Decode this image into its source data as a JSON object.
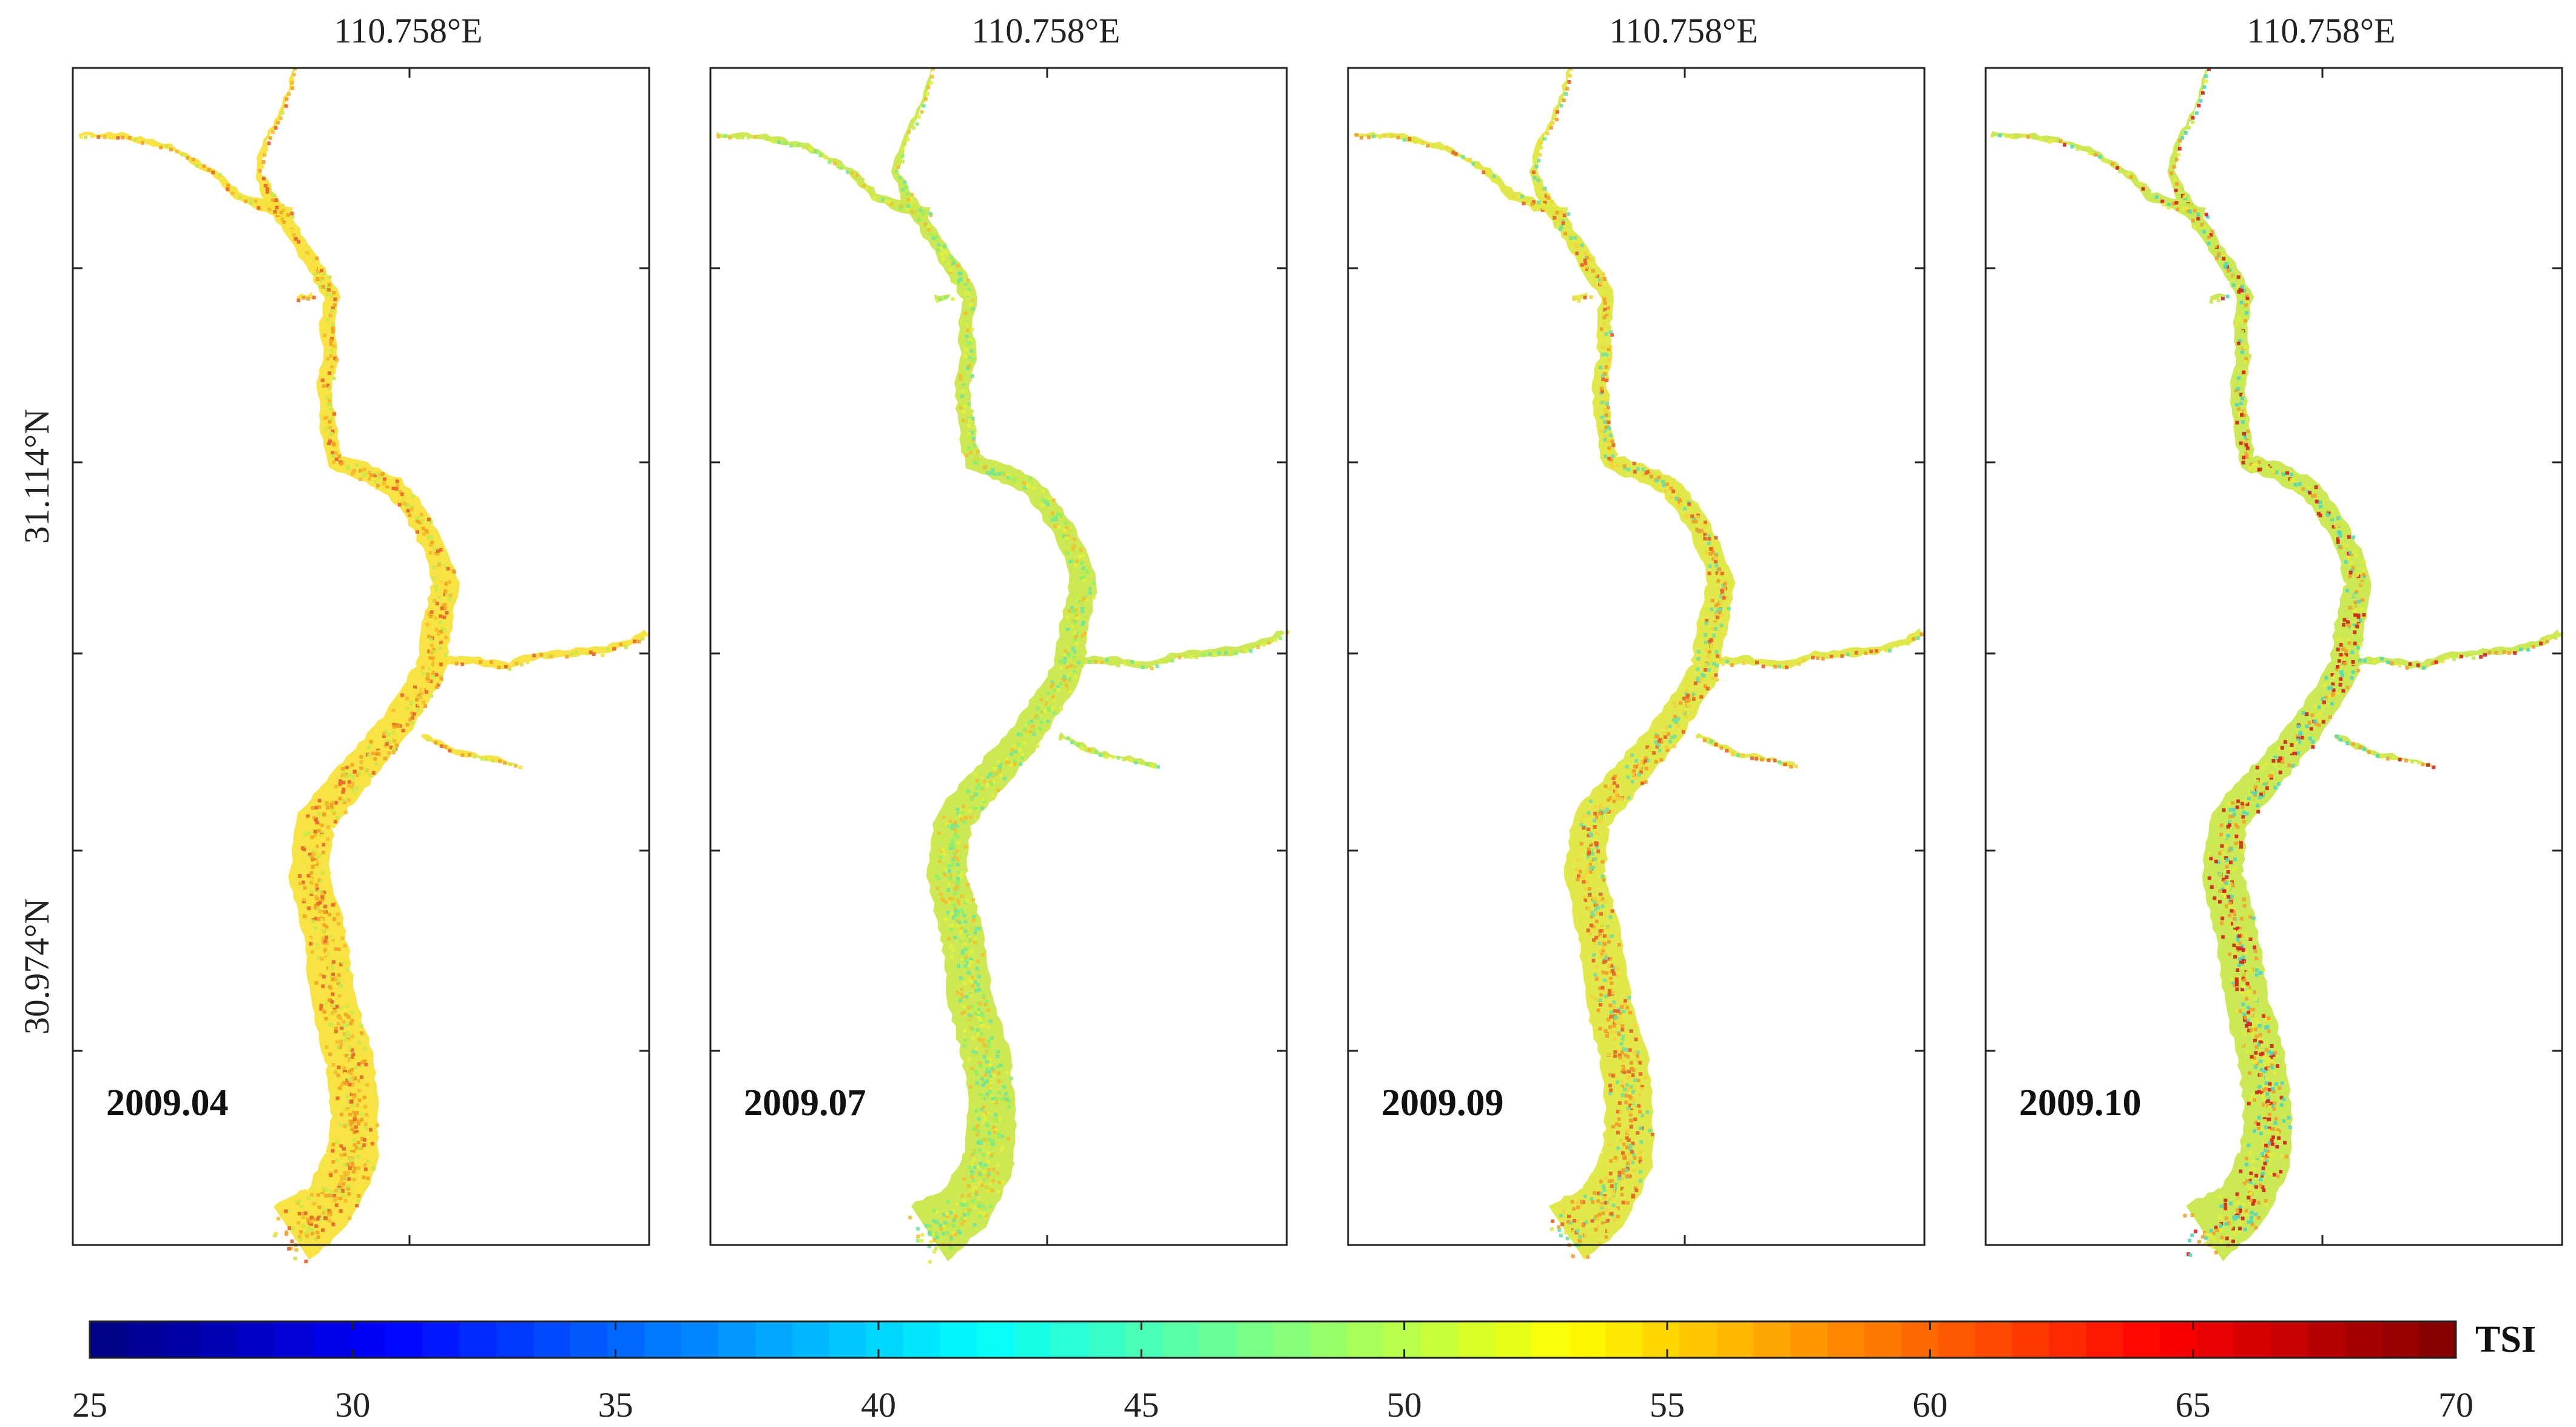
{
  "figure": {
    "panels": [
      {
        "date_label": "2009.04",
        "lon_label": "110.758°E",
        "palette": "p04"
      },
      {
        "date_label": "2009.07",
        "lon_label": "110.758°E",
        "palette": "p07"
      },
      {
        "date_label": "2009.09",
        "lon_label": "110.758°E",
        "palette": "p09"
      },
      {
        "date_label": "2009.10",
        "lon_label": "110.758°E",
        "palette": "p10"
      }
    ],
    "lat_labels": [
      "31.114°N",
      "30.974°N"
    ],
    "colorbar": {
      "title": "TSI",
      "min": 25,
      "max": 70,
      "ticks": [
        "25",
        "30",
        "35",
        "40",
        "45",
        "50",
        "55",
        "60",
        "65",
        "70"
      ],
      "steps": 64,
      "colormap": "jet"
    },
    "colors": {
      "p04": [
        "#f7e23a",
        "#f6b830",
        "#f2a021",
        "#e8632a",
        "#c9e84a"
      ],
      "p07": [
        "#c9e84a",
        "#8ef06a",
        "#e4ef3a",
        "#6fe69a",
        "#f2c030"
      ],
      "p09": [
        "#dfe840",
        "#f4d23a",
        "#f29c2a",
        "#6fe0a0",
        "#e8602a"
      ],
      "p10": [
        "#c8e84c",
        "#e6ec3a",
        "#f4a02c",
        "#d6221e",
        "#4fd8c0"
      ]
    }
  }
}
